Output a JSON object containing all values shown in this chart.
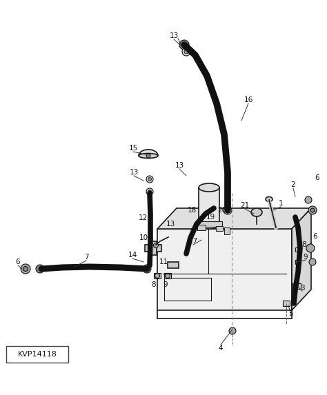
{
  "bg_color": "#ffffff",
  "line_color": "#1a1a1a",
  "part_label": "KVP14118",
  "fig_width": 4.74,
  "fig_height": 5.73,
  "dpi": 100
}
